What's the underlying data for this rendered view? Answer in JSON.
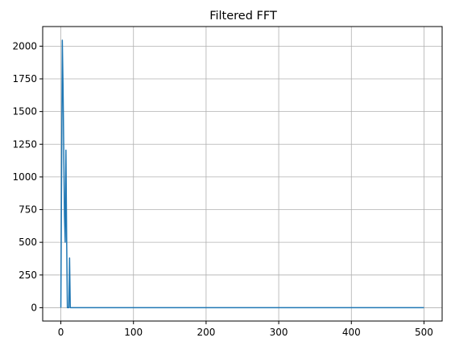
{
  "chart_data": {
    "type": "line",
    "title": "Filtered FFT",
    "xlabel": "",
    "ylabel": "",
    "xlim": [
      -25,
      525
    ],
    "ylim": [
      -102,
      2150
    ],
    "grid": true,
    "x_ticks": [
      0,
      100,
      200,
      300,
      400,
      500
    ],
    "y_ticks": [
      0,
      250,
      500,
      750,
      1000,
      1250,
      1500,
      1750,
      2000
    ],
    "series": [
      {
        "color": "#1f77b4",
        "points": [
          [
            0,
            0
          ],
          [
            1,
            1000
          ],
          [
            2,
            2045
          ],
          [
            3,
            1700
          ],
          [
            4,
            1200
          ],
          [
            5,
            700
          ],
          [
            6,
            500
          ],
          [
            7,
            1205
          ],
          [
            8,
            520
          ],
          [
            9,
            0
          ],
          [
            10,
            0
          ],
          [
            11,
            0
          ],
          [
            12,
            380
          ],
          [
            13,
            0
          ],
          [
            14,
            0
          ],
          [
            20,
            0
          ],
          [
            50,
            0
          ],
          [
            100,
            0
          ],
          [
            200,
            0
          ],
          [
            300,
            0
          ],
          [
            400,
            0
          ],
          [
            500,
            0
          ]
        ]
      }
    ]
  }
}
